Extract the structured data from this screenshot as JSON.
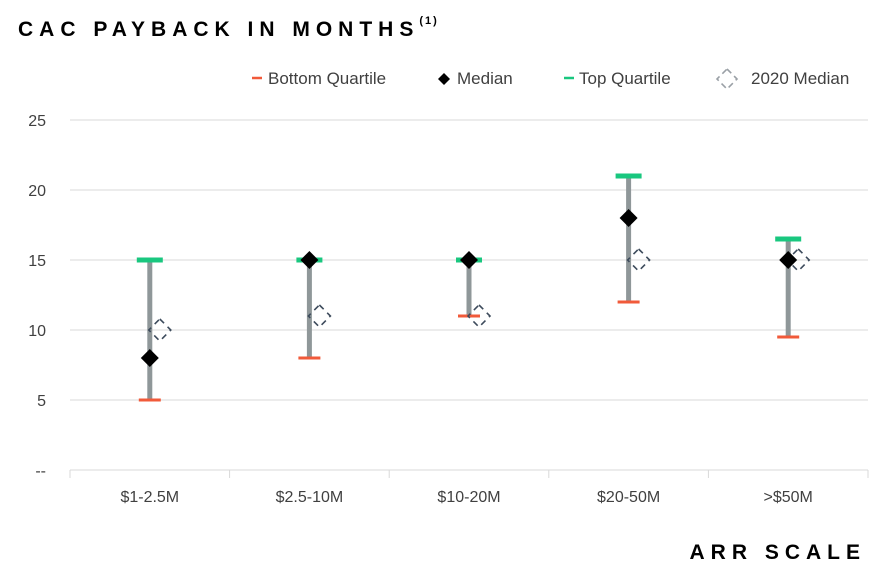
{
  "chart_data": {
    "type": "range",
    "title": "CAC PAYBACK IN MONTHS",
    "title_sup": "(1)",
    "xlabel": "ARR SCALE",
    "ylabel": "",
    "categories": [
      "$1-2.5M",
      "$2.5-10M",
      "$10-20M",
      "$20-50M",
      ">$50M"
    ],
    "y_tick_labels": [
      "--",
      "5",
      "10",
      "15",
      "20",
      "25"
    ],
    "ylim": [
      0,
      25
    ],
    "grid": true,
    "legend_position": "top-right",
    "series": [
      {
        "name": "Bottom Quartile",
        "values": [
          5,
          8,
          11,
          12,
          9.5
        ]
      },
      {
        "name": "Median",
        "values": [
          8,
          15,
          15,
          18,
          15
        ]
      },
      {
        "name": "Top Quartile",
        "values": [
          15,
          15,
          15,
          21,
          16.5
        ]
      },
      {
        "name": "2020 Median",
        "values": [
          10,
          11,
          11,
          15,
          15
        ]
      }
    ],
    "colors": {
      "bottom": "#f15a3a",
      "median": "#000000",
      "top": "#19c77f",
      "median_2020": "#3d4b5c",
      "range_bar": "#8f9799",
      "grid": "#d9d9d9",
      "axis_text": "#404040"
    }
  }
}
